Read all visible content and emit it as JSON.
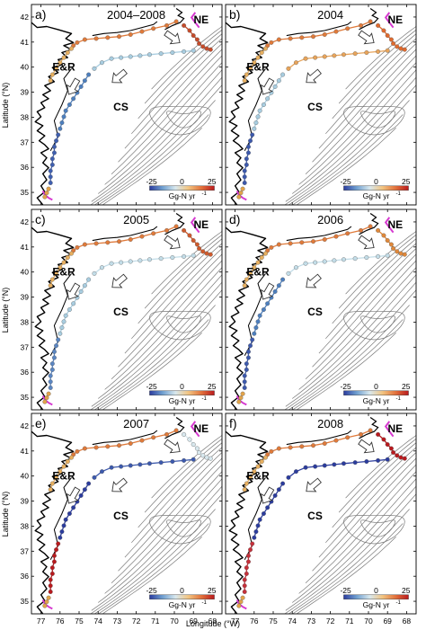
{
  "figure": {
    "ylabel": "Latitude (°N)",
    "xlabel": "Longitude (°W)",
    "x_ticks": [
      "77",
      "76",
      "75",
      "74",
      "73",
      "72",
      "71",
      "70",
      "69",
      "68"
    ],
    "y_ticks": [
      "35",
      "36",
      "37",
      "38",
      "39",
      "40",
      "41",
      "42"
    ],
    "region_labels": {
      "ne": "NE",
      "er": "E&R",
      "cs": "CS"
    },
    "colorbar": {
      "ticks": [
        "-25",
        "0",
        "25"
      ],
      "unit": "Gg-N yr",
      "unit_exp": "-1",
      "colors": [
        "#2b3c9e",
        "#6f9fd0",
        "#d8e8ee",
        "#f2c480",
        "#e2723c",
        "#b9191d"
      ]
    },
    "colors": {
      "coast": "#000000",
      "contour": "#7a7a7a",
      "shelf_break": "#d63ad0",
      "arrow_fill": "#ffffff"
    },
    "panels": [
      {
        "id": "a",
        "tag": "a)",
        "year": "2004–2008",
        "show_xticks": false,
        "show_yticks": true,
        "segments": {
          "ne_coast": "#e07a3a",
          "er_coast": "#e8b060",
          "ne_shelf": "#c64b2a",
          "cs_north": "#a8cde0",
          "cs_mid": "#4d7fbe",
          "cs_south": "#3f5fb0",
          "south_tip": "#e2a34a"
        }
      },
      {
        "id": "b",
        "tag": "b)",
        "year": "2004",
        "show_xticks": false,
        "show_yticks": false,
        "segments": {
          "ne_coast": "#e07a3a",
          "er_coast": "#e8b060",
          "ne_shelf": "#e06a2e",
          "cs_north": "#e8a45a",
          "cs_mid": "#a8cde0",
          "cs_south": "#3c59ad",
          "south_tip": "#e2a34a"
        }
      },
      {
        "id": "c",
        "tag": "c)",
        "year": "2005",
        "show_xticks": false,
        "show_yticks": true,
        "segments": {
          "ne_coast": "#e07a3a",
          "er_coast": "#e8b060",
          "ne_shelf": "#cf5a2c",
          "cs_north": "#c3dde8",
          "cs_mid": "#a8cde0",
          "cs_south": "#5b86c2",
          "south_tip": "#e2a34a"
        }
      },
      {
        "id": "d",
        "tag": "d)",
        "year": "2006",
        "show_xticks": false,
        "show_yticks": false,
        "segments": {
          "ne_coast": "#e07a3a",
          "er_coast": "#e8b060",
          "ne_shelf": "#e0883a",
          "cs_north": "#c3dde8",
          "cs_mid": "#4d7fbe",
          "cs_south": "#3c59ad",
          "south_tip": "#e2a34a"
        }
      },
      {
        "id": "e",
        "tag": "e)",
        "year": "2007",
        "show_xticks": true,
        "show_yticks": true,
        "segments": {
          "ne_coast": "#e07a3a",
          "er_coast": "#e8b060",
          "ne_shelf": "#d8e8ee",
          "cs_north": "#3c59ad",
          "cs_mid": "#2b3c9e",
          "cs_south": "#b9191d",
          "south_tip": "#e2a34a"
        }
      },
      {
        "id": "f",
        "tag": "f)",
        "year": "2008",
        "show_xticks": true,
        "show_yticks": false,
        "segments": {
          "ne_coast": "#e07a3a",
          "er_coast": "#e8b060",
          "ne_shelf": "#b9191d",
          "cs_north": "#2b3c9e",
          "cs_mid": "#2b3c9e",
          "cs_south": "#c6303a",
          "south_tip": "#e2a34a"
        }
      }
    ]
  }
}
